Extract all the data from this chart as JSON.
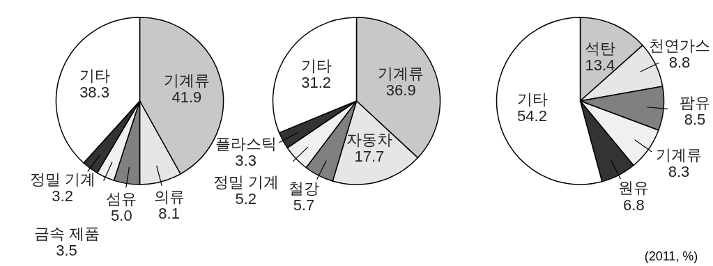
{
  "chart_data": [
    {
      "type": "pie",
      "categories": [
        "기계류",
        "의류",
        "섬유",
        "금속 제품",
        "정밀 기계",
        "기타"
      ],
      "values": [
        41.9,
        8.1,
        5.0,
        3.5,
        3.2,
        38.3
      ],
      "value_labels": [
        "41.9",
        "8.1",
        "5.0",
        "3.5",
        "3.2",
        "38.3"
      ],
      "colors": [
        "#c8c8c8",
        "#e6e6e6",
        "#808080",
        "#f0f0f0",
        "#333333",
        "#ffffff"
      ]
    },
    {
      "type": "pie",
      "categories": [
        "기계류",
        "자동차",
        "철강",
        "정밀 기계",
        "플라스틱",
        "기타"
      ],
      "values": [
        36.9,
        17.7,
        5.7,
        5.2,
        3.3,
        31.2
      ],
      "value_labels": [
        "36.9",
        "17.7",
        "5.7",
        "5.2",
        "3.3",
        "31.2"
      ],
      "colors": [
        "#c8c8c8",
        "#e6e6e6",
        "#808080",
        "#f0f0f0",
        "#333333",
        "#ffffff"
      ]
    },
    {
      "type": "pie",
      "categories": [
        "석탄",
        "천연가스",
        "팜유",
        "기계류",
        "원유",
        "기타"
      ],
      "values": [
        13.4,
        8.8,
        8.5,
        8.3,
        6.8,
        54.2
      ],
      "value_labels": [
        "13.4",
        "8.8",
        "8.5",
        "8.3",
        "6.8",
        "54.2"
      ],
      "colors": [
        "#c8c8c8",
        "#e6e6e6",
        "#808080",
        "#f0f0f0",
        "#333333",
        "#ffffff"
      ],
      "annotations": [
        "(2011, %)"
      ]
    }
  ]
}
